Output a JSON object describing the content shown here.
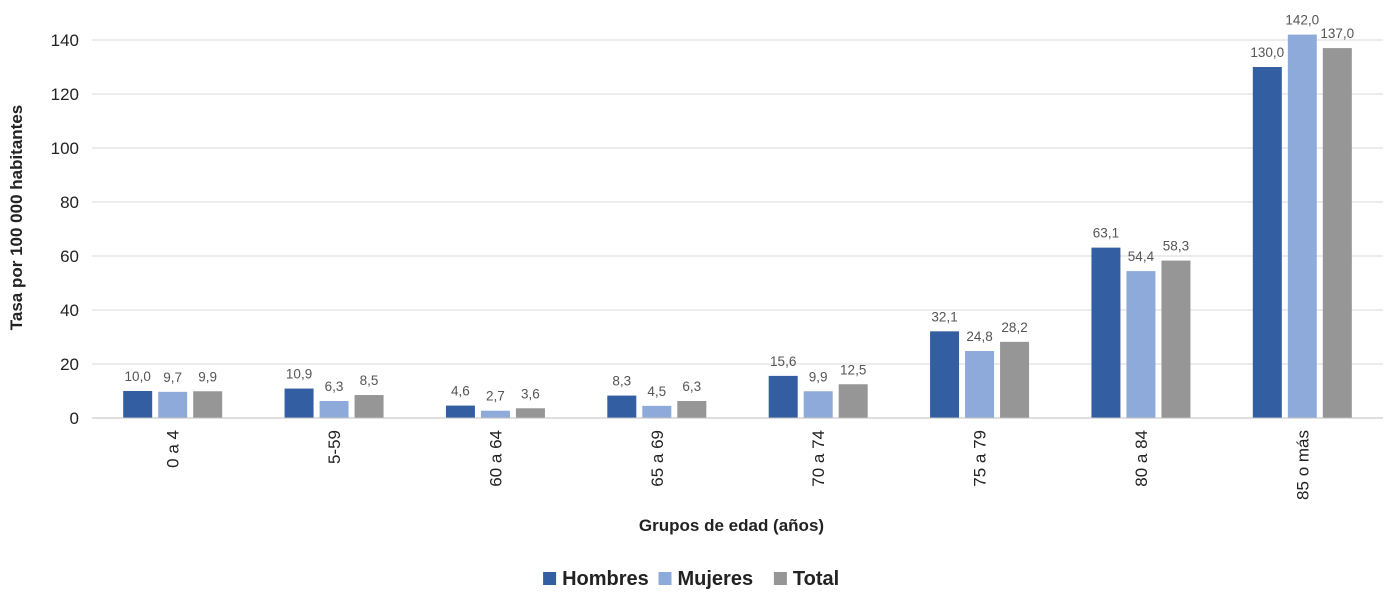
{
  "chart_data": {
    "type": "bar",
    "title": "",
    "xlabel": "Grupos de edad (años)",
    "ylabel": "Tasa por 100 000 habitantes",
    "ylim": [
      0,
      150
    ],
    "yticks": [
      0,
      20,
      40,
      60,
      80,
      100,
      120,
      140
    ],
    "grid": true,
    "legend_position": "bottom",
    "categories": [
      "0 a 4",
      "5-59",
      "60 a 64",
      "65 a 69",
      "70 a 74",
      "75 a 79",
      "80 a 84",
      "85 o más"
    ],
    "series": [
      {
        "name": "Hombres",
        "color": "#335ea1",
        "values": [
          10.0,
          10.9,
          4.6,
          8.3,
          15.6,
          32.1,
          63.1,
          130.0
        ],
        "labels": [
          "10,0",
          "10,9",
          "4,6",
          "8,3",
          "15,6",
          "32,1",
          "63,1",
          "130,0"
        ]
      },
      {
        "name": "Mujeres",
        "color": "#8eaadb",
        "values": [
          9.7,
          6.3,
          2.7,
          4.5,
          9.9,
          24.8,
          54.4,
          142.0
        ],
        "labels": [
          "9,7",
          "6,3",
          "2,7",
          "4,5",
          "9,9",
          "24,8",
          "54,4",
          "142,0"
        ]
      },
      {
        "name": "Total",
        "color": "#969696",
        "values": [
          9.9,
          8.5,
          3.6,
          6.3,
          12.5,
          28.2,
          58.3,
          137.0
        ],
        "labels": [
          "9,9",
          "8,5",
          "3,6",
          "6,3",
          "12,5",
          "28,2",
          "58,3",
          "137,0"
        ]
      }
    ]
  }
}
